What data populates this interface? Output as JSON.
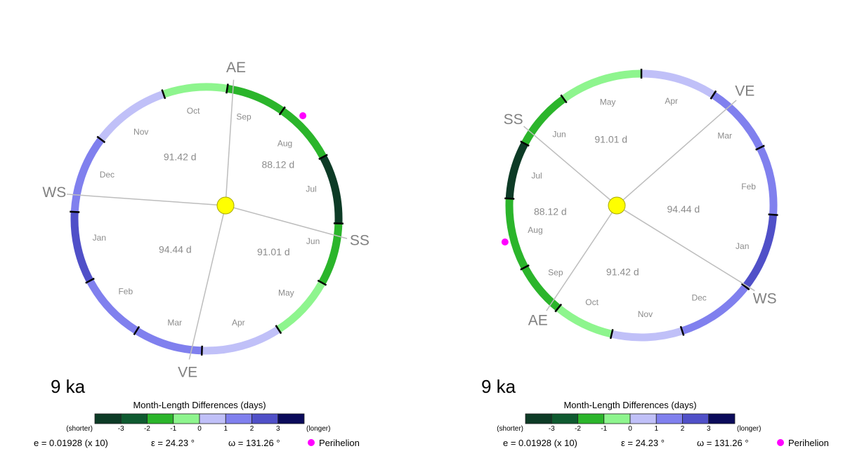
{
  "colors": {
    "scale": [
      "#0d3b26",
      "#0f5a30",
      "#2bb52b",
      "#8ef58e",
      "#c0c0f8",
      "#8080ee",
      "#5050c8",
      "#0b0b5a"
    ],
    "sun": "#ffff00",
    "perihelion": "#ff00ff",
    "divider": "#bdbdbd",
    "label": "#8c8c8c",
    "cardinal": "#808080"
  },
  "panels": [
    {
      "age_label": "9 ka",
      "legend": {
        "title": "Month-Length Differences (days)",
        "shorter_label": "(shorter)",
        "longer_label": "(longer)",
        "ticks": [
          "-3",
          "-2",
          "-1",
          "0",
          "1",
          "2",
          "3"
        ]
      },
      "params": {
        "e_label": "e = 0.01928 (x 10)",
        "eps_label": "ε = 24.23 °",
        "omega_label": "ω = 131.26 °",
        "perihelion_label": "Perihelion"
      },
      "cardinals": [
        {
          "name": "AE",
          "angle": 79
        },
        {
          "name": "SS",
          "angle": 352
        },
        {
          "name": "VE",
          "angle": 263
        },
        {
          "name": "WS",
          "angle": 170
        }
      ],
      "seasons": [
        {
          "label": "88.12 d",
          "angle": 38
        },
        {
          "label": "91.42 d",
          "angle": 133
        },
        {
          "label": "94.44 d",
          "angle": 221
        },
        {
          "label": "91.01 d",
          "angle": 316
        }
      ],
      "months": [
        {
          "name": "Jan",
          "angle": 190,
          "color": 6
        },
        {
          "name": "Feb",
          "angle": 222,
          "color": 5
        },
        {
          "name": "Mar",
          "angle": 253,
          "color": 5
        },
        {
          "name": "Apr",
          "angle": 287,
          "color": 4
        },
        {
          "name": "May",
          "angle": 317,
          "color": 3
        },
        {
          "name": "Jun",
          "angle": 348,
          "color": 2
        },
        {
          "name": "Jul",
          "angle": 16,
          "color": 0
        },
        {
          "name": "Aug",
          "angle": 44,
          "color": 2
        },
        {
          "name": "Sep",
          "angle": 70,
          "color": 2
        },
        {
          "name": "Oct",
          "angle": 97,
          "color": 3
        },
        {
          "name": "Nov",
          "angle": 127,
          "color": 4
        },
        {
          "name": "Dec",
          "angle": 156,
          "color": 5
        }
      ],
      "boundaries": [
        177,
        208,
        238,
        268,
        303,
        331,
        358,
        28,
        55,
        81,
        109,
        143
      ],
      "perihelion_angle": 47
    },
    {
      "age_label": "9 ka",
      "legend": {
        "title": "Month-Length Differences (days)",
        "shorter_label": "(shorter)",
        "longer_label": "(longer)",
        "ticks": [
          "-3",
          "-2",
          "-1",
          "0",
          "1",
          "2",
          "3"
        ]
      },
      "params": {
        "e_label": "e = 0.01928 (x 10)",
        "eps_label": "ε = 24.23 °",
        "omega_label": "ω = 131.26 °",
        "perihelion_label": "Perihelion"
      },
      "cardinals": [
        {
          "name": "VE",
          "angle": 48
        },
        {
          "name": "SS",
          "angle": 146
        },
        {
          "name": "AE",
          "angle": 228
        },
        {
          "name": "WS",
          "angle": 323
        }
      ],
      "seasons": [
        {
          "label": "91.01 d",
          "angle": 95
        },
        {
          "label": "88.12 d",
          "angle": 185
        },
        {
          "label": "91.42 d",
          "angle": 275
        },
        {
          "label": "94.44 d",
          "angle": 357
        }
      ],
      "months": [
        {
          "name": "Jan",
          "angle": 338,
          "color": 6
        },
        {
          "name": "Feb",
          "angle": 10,
          "color": 5
        },
        {
          "name": "Mar",
          "angle": 40,
          "color": 5
        },
        {
          "name": "Apr",
          "angle": 74,
          "color": 4
        },
        {
          "name": "May",
          "angle": 108,
          "color": 3
        },
        {
          "name": "Jun",
          "angle": 139,
          "color": 2
        },
        {
          "name": "Jul",
          "angle": 164,
          "color": 0
        },
        {
          "name": "Aug",
          "angle": 193,
          "color": 2
        },
        {
          "name": "Sep",
          "angle": 218,
          "color": 2
        },
        {
          "name": "Oct",
          "angle": 243,
          "color": 3
        },
        {
          "name": "Nov",
          "angle": 272,
          "color": 4
        },
        {
          "name": "Dec",
          "angle": 302,
          "color": 5
        }
      ],
      "boundaries": [
        322,
        356,
        26,
        57,
        90,
        126,
        152,
        177,
        208,
        231,
        257,
        288
      ],
      "perihelion_angle": 195
    }
  ]
}
